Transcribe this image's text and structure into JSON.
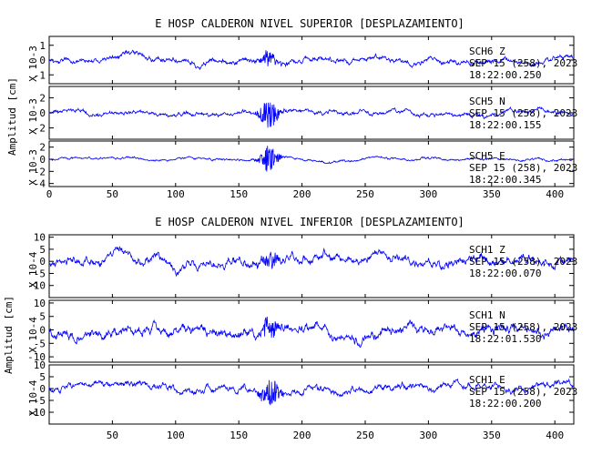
{
  "chart_data": [
    {
      "type": "line",
      "title": "E HOSP CALDERON NIVEL SUPERIOR [DESPLAZAMIENTO]",
      "ylabel": "Amplitud [cm]",
      "xlim": [
        0,
        415
      ],
      "x_ticks": [
        "0",
        "50",
        "100",
        "150",
        "200",
        "250",
        "300",
        "350",
        "400"
      ],
      "series": [
        {
          "name": "SCH6   Z",
          "scale_label": "X 10-3",
          "ylim": [
            -1.6,
            1.6
          ],
          "y_ticks": [
            "1",
            "0",
            "-1"
          ],
          "date": "SEP 15 (258), 2023",
          "time": "18:22:00.250",
          "noise_amp": 0.45,
          "event_amp": 0.6,
          "event_center": 173
        },
        {
          "name": "SCH5   N",
          "scale_label": "X 10-3",
          "ylim": [
            -3.5,
            3.5
          ],
          "y_ticks": [
            "2",
            "0",
            "-2"
          ],
          "date": "SEP 15 (258), 2023",
          "time": "18:22:00.155",
          "noise_amp": 0.7,
          "event_amp": 2.6,
          "event_center": 174
        },
        {
          "name": "SCH5   E",
          "scale_label": "X 10-3",
          "ylim": [
            -4.5,
            3.0
          ],
          "y_ticks": [
            "2",
            "0",
            "-2",
            "-4"
          ],
          "date": "SEP 15 (258), 2023",
          "time": "18:22:00.345",
          "noise_amp": 0.5,
          "event_amp": 2.8,
          "event_center": 174
        }
      ]
    },
    {
      "type": "line",
      "title": "E HOSP CALDERON NIVEL INFERIOR [DESPLAZAMIENTO]",
      "ylabel": "Amplitud [cm]",
      "xlim": [
        0,
        415
      ],
      "x_ticks": [
        "50",
        "100",
        "150",
        "200",
        "250",
        "300",
        "350",
        "400"
      ],
      "series": [
        {
          "name": "SCH1   Z",
          "scale_label": "X 10-4",
          "ylim": [
            -15,
            11
          ],
          "y_ticks": [
            "10",
            "5",
            "0",
            "-5",
            "-10"
          ],
          "date": "SEP 15 (258), 2023",
          "time": "18:22:00.070",
          "noise_amp": 4.5,
          "event_amp": 4,
          "event_center": 175
        },
        {
          "name": "SCH1   N",
          "scale_label": "X 10-4",
          "ylim": [
            -12,
            11
          ],
          "y_ticks": [
            "10",
            "5",
            "0",
            "-5",
            "-10"
          ],
          "date": "SEP 15 (258), 2023",
          "time": "18:22:01.530",
          "noise_amp": 4.5,
          "event_amp": 5,
          "event_center": 174
        },
        {
          "name": "SCH1   E",
          "scale_label": "X 10-4",
          "ylim": [
            -15,
            10
          ],
          "y_ticks": [
            "10",
            "5",
            "0",
            "-5",
            "-10"
          ],
          "date": "SEP 15 (258), 2023",
          "time": "18:22:00.200",
          "noise_amp": 3.5,
          "event_amp": 8,
          "event_center": 175
        }
      ]
    }
  ]
}
